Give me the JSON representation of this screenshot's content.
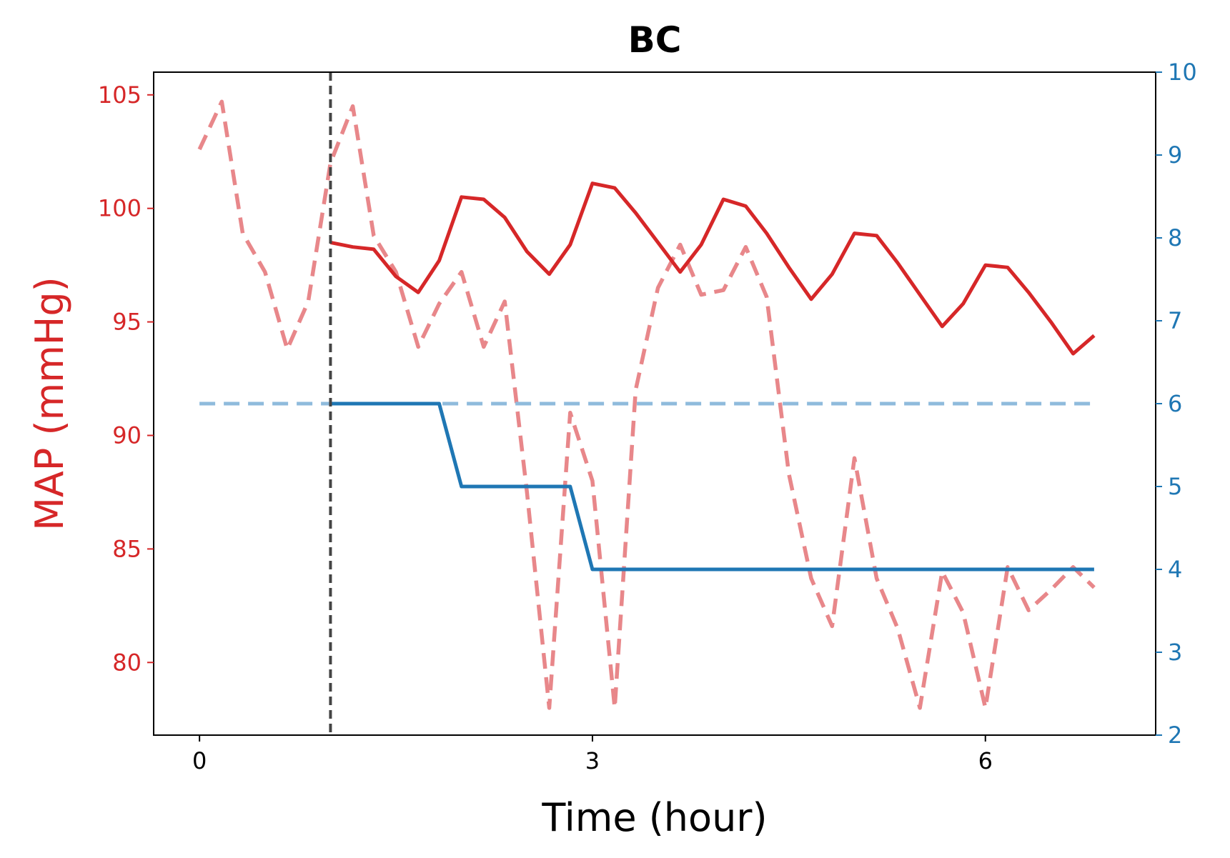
{
  "chart_data": {
    "type": "line",
    "title": "BC",
    "xlabel": "Time (hour)",
    "ylabel_left": "MAP (mmHg)",
    "ylabel_right": "",
    "xlim": [
      -0.35,
      7.3
    ],
    "ylim_left": [
      76.8,
      106.0
    ],
    "ylim_right": [
      2,
      10
    ],
    "x_ticks": [
      0,
      3,
      6
    ],
    "x_tick_labels": [
      "0",
      "3",
      "6"
    ],
    "y_left_ticks": [
      80,
      85,
      90,
      95,
      100,
      105
    ],
    "y_left_tick_labels": [
      "80",
      "85",
      "90",
      "95",
      "100",
      "105"
    ],
    "y_right_ticks": [
      2,
      3,
      4,
      5,
      6,
      7,
      8,
      9,
      10
    ],
    "y_right_tick_labels": [
      "2",
      "3",
      "4",
      "5",
      "6",
      "7",
      "8",
      "9",
      "10"
    ],
    "vline_x": 1.0,
    "grid": false,
    "colors": {
      "map_solid": "#d62728",
      "map_dashed": "#e8878a",
      "dose_solid": "#1f77b4",
      "dose_dashed": "#8fbbdc",
      "vline": "#444444",
      "left_axis": "#d62728",
      "right_axis": "#1f77b4"
    },
    "series": [
      {
        "axis": "left",
        "style": "dashed",
        "x": [
          0,
          0.17,
          0.33,
          0.5,
          0.67,
          0.83,
          1.0,
          1.17,
          1.33,
          1.5,
          1.67,
          1.83,
          2.0,
          2.17,
          2.33,
          2.5,
          2.67,
          2.83,
          3.0,
          3.17,
          3.33,
          3.5,
          3.67,
          3.83,
          4.0,
          4.17,
          4.33,
          4.5,
          4.67,
          4.83,
          5.0,
          5.17,
          5.33,
          5.5,
          5.67,
          5.83,
          6.0,
          6.17,
          6.33,
          6.5,
          6.67,
          6.83
        ],
        "y": [
          102.6,
          104.7,
          98.9,
          97.2,
          93.8,
          95.9,
          102.0,
          104.5,
          98.8,
          97.2,
          93.9,
          95.8,
          97.2,
          93.9,
          95.9,
          87.5,
          78.0,
          91.0,
          88.0,
          78.0,
          92.0,
          96.5,
          98.4,
          96.2,
          96.4,
          98.3,
          96.1,
          88.3,
          83.7,
          81.6,
          89.0,
          83.7,
          81.5,
          78.0,
          84.0,
          82.2,
          78.0,
          84.2,
          82.3,
          83.2,
          84.2,
          83.3
        ]
      },
      {
        "axis": "left",
        "style": "solid",
        "x": [
          1.0,
          1.17,
          1.33,
          1.5,
          1.67,
          1.83,
          2.0,
          2.17,
          2.33,
          2.5,
          2.67,
          2.83,
          3.0,
          3.17,
          3.33,
          3.5,
          3.67,
          3.83,
          4.0,
          4.17,
          4.33,
          4.5,
          4.67,
          4.83,
          5.0,
          5.17,
          5.33,
          5.5,
          5.67,
          5.83,
          6.0,
          6.17,
          6.33,
          6.5,
          6.67,
          6.83
        ],
        "y": [
          98.5,
          98.3,
          98.2,
          97.0,
          96.3,
          97.7,
          100.5,
          100.4,
          99.6,
          98.1,
          97.1,
          98.4,
          101.1,
          100.9,
          99.8,
          98.5,
          97.2,
          98.4,
          100.4,
          100.1,
          98.9,
          97.4,
          96.0,
          97.1,
          98.9,
          98.8,
          97.6,
          96.2,
          94.8,
          95.8,
          97.5,
          97.4,
          96.3,
          95.0,
          93.6,
          94.4
        ]
      },
      {
        "axis": "right",
        "style": "dashed",
        "x": [
          0,
          6.83
        ],
        "y": [
          6,
          6
        ]
      },
      {
        "axis": "right",
        "style": "solid",
        "x": [
          1.0,
          1.83,
          2.0,
          2.83,
          3.0,
          6.83
        ],
        "y": [
          6,
          6,
          5,
          5,
          4,
          4
        ]
      }
    ]
  }
}
